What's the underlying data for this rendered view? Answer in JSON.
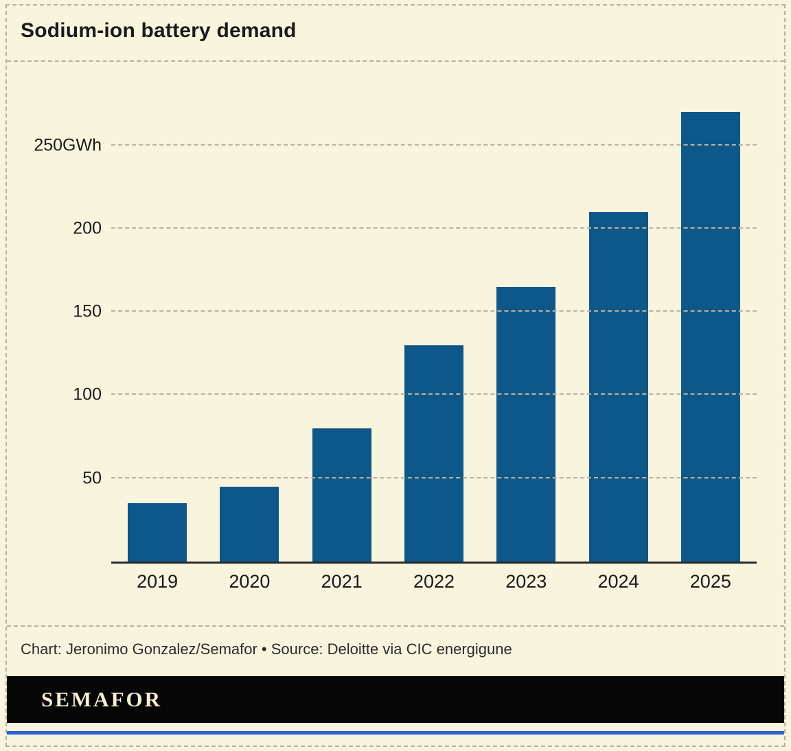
{
  "page": {
    "title": "Sodium-ion battery demand",
    "credit": "Chart: Jeronimo Gonzalez/Semafor • Source: Deloitte via CIC energigune",
    "brand": "SEMAFOR",
    "background_color": "#f9f4dd",
    "footer_bg": "#060606",
    "bottom_accent_color": "#2d5fd0"
  },
  "chart_data": {
    "type": "bar",
    "title": "Sodium-ion battery demand",
    "categories": [
      "2019",
      "2020",
      "2021",
      "2022",
      "2023",
      "2024",
      "2025"
    ],
    "values": [
      35,
      45,
      80,
      130,
      165,
      210,
      270
    ],
    "unit": "GWh",
    "xlabel": "",
    "ylabel": "GWh",
    "ylim": [
      0,
      275
    ],
    "yticks": [
      50,
      100,
      150,
      200,
      250
    ],
    "ytick_labels": [
      "50",
      "100",
      "150",
      "200",
      "250GWh"
    ],
    "bar_color": "#0e5789",
    "grid": "dashed-horizontal",
    "legend": "none"
  }
}
